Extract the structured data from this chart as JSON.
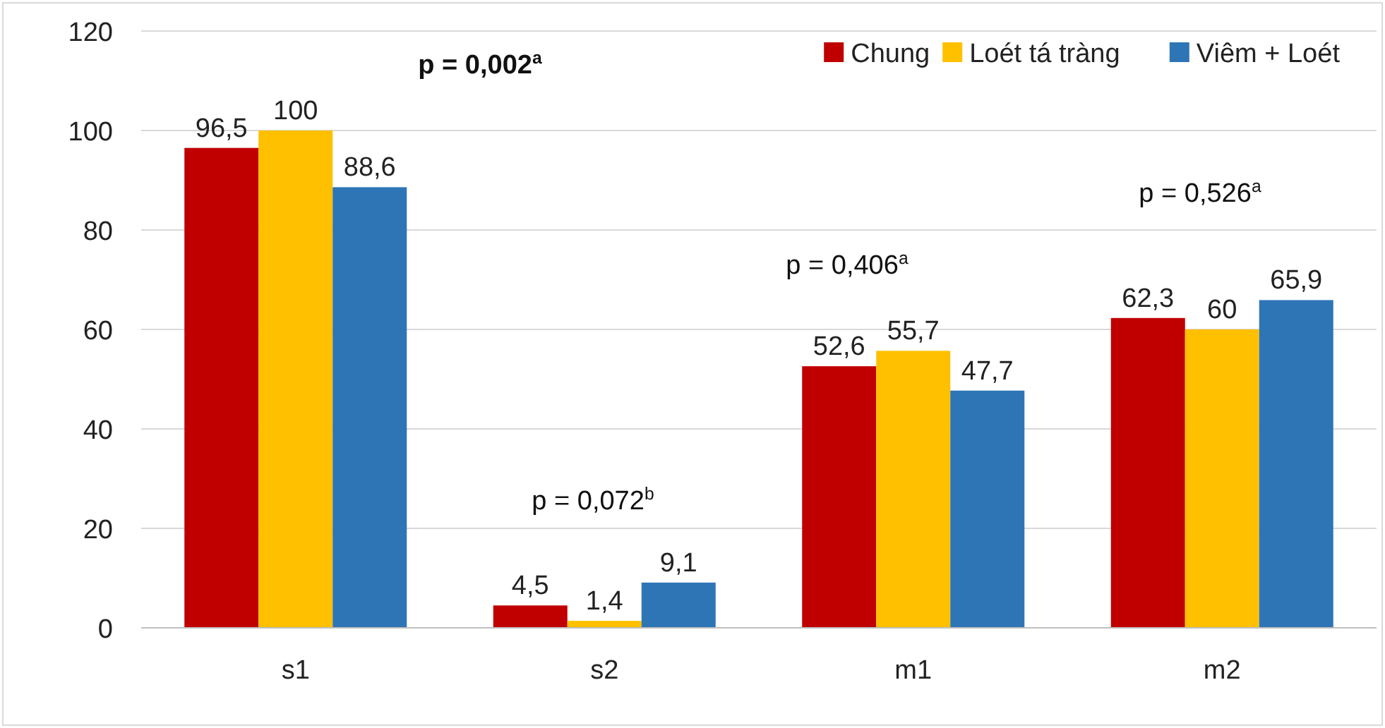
{
  "chart_data": {
    "type": "bar",
    "categories": [
      "s1",
      "s2",
      "m1",
      "m2"
    ],
    "series": [
      {
        "name": "Chung",
        "color": "#c00000",
        "values": [
          96.5,
          4.5,
          52.6,
          62.3
        ],
        "value_labels": [
          "96,5",
          "4,5",
          "52,6",
          "62,3"
        ]
      },
      {
        "name": "Loét tá tràng",
        "color": "#ffc000",
        "values": [
          100,
          1.4,
          55.7,
          60
        ],
        "value_labels": [
          "100",
          "1,4",
          "55,7",
          "60"
        ]
      },
      {
        "name": "Viêm + Loét",
        "color": "#2e75b6",
        "values": [
          88.6,
          9.1,
          47.7,
          65.9
        ],
        "value_labels": [
          "88,6",
          "9,1",
          "47,7",
          "65,9"
        ]
      }
    ],
    "ylim": [
      0,
      120
    ],
    "yticks": [
      0,
      20,
      40,
      60,
      80,
      100,
      120
    ],
    "grid": "y",
    "legend": "top right",
    "annotations": [
      "p = 0,002$^{a}$",
      "p = 0,072$^{b}$",
      "p = 0,406$^{a}$",
      "p = 0,526$^{a}$"
    ]
  }
}
